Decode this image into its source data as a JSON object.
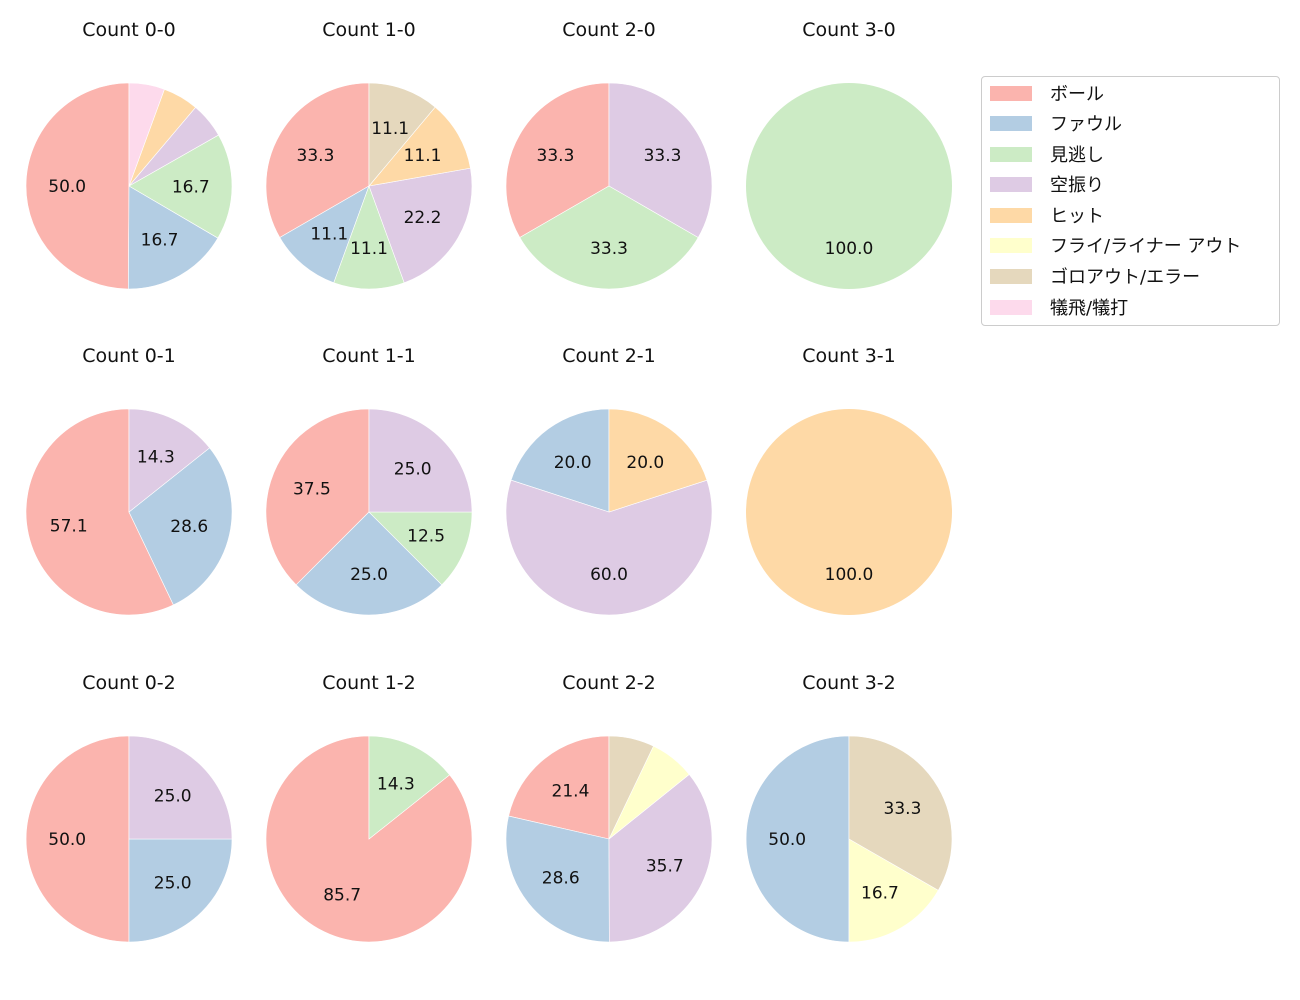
{
  "chart_data": {
    "type": "pie",
    "layout": {
      "rows": 3,
      "cols": 4,
      "start_angle": 90,
      "direction": "counterclockwise",
      "label_format": "%.1f"
    },
    "categories": [
      "ボール",
      "ファウル",
      "見逃し",
      "空振り",
      "ヒット",
      "フライ/ライナー アウト",
      "ゴロアウト/エラー",
      "犠飛/犠打"
    ],
    "colors": [
      "#fbb4ae",
      "#b3cde3",
      "#ccebc5",
      "#decbe4",
      "#fed9a6",
      "#ffffcc",
      "#e5d8bd",
      "#fddaec"
    ],
    "charts": [
      {
        "title": "Count 0-0",
        "values": [
          50.0,
          16.7,
          16.7,
          5.6,
          5.6,
          0,
          0,
          5.6
        ],
        "labels_shown": [
          "50.0",
          "16.7",
          "16.7"
        ]
      },
      {
        "title": "Count 1-0",
        "values": [
          33.3,
          11.1,
          11.1,
          22.2,
          11.1,
          0,
          11.1,
          0
        ],
        "labels_shown": [
          "33.3",
          "11.1",
          "11.1",
          "22.2",
          "11.1",
          "11.1"
        ]
      },
      {
        "title": "Count 2-0",
        "values": [
          33.3,
          0,
          33.3,
          33.3,
          0,
          0,
          0,
          0
        ],
        "labels_shown": [
          "33.3",
          "33.3",
          "33.3"
        ]
      },
      {
        "title": "Count 3-0",
        "values": [
          0,
          0,
          100.0,
          0,
          0,
          0,
          0,
          0
        ],
        "labels_shown": [
          "100.0"
        ]
      },
      {
        "title": "Count 0-1",
        "values": [
          57.1,
          28.6,
          0,
          14.3,
          0,
          0,
          0,
          0
        ],
        "labels_shown": [
          "57.1",
          "28.6",
          "14.3"
        ]
      },
      {
        "title": "Count 1-1",
        "values": [
          37.5,
          25.0,
          12.5,
          25.0,
          0,
          0,
          0,
          0
        ],
        "labels_shown": [
          "37.5",
          "25.0",
          "12.5",
          "25.0"
        ]
      },
      {
        "title": "Count 2-1",
        "values": [
          0,
          20.0,
          0,
          60.0,
          20.0,
          0,
          0,
          0
        ],
        "labels_shown": [
          "20.0",
          "60.0",
          "20.0"
        ]
      },
      {
        "title": "Count 3-1",
        "values": [
          0,
          0,
          0,
          0,
          100.0,
          0,
          0,
          0
        ],
        "labels_shown": [
          "100.0"
        ]
      },
      {
        "title": "Count 0-2",
        "values": [
          50.0,
          25.0,
          0,
          25.0,
          0,
          0,
          0,
          0
        ],
        "labels_shown": [
          "50.0",
          "25.0",
          "25.0"
        ]
      },
      {
        "title": "Count 1-2",
        "values": [
          85.7,
          0,
          14.3,
          0,
          0,
          0,
          0,
          0
        ],
        "labels_shown": [
          "85.7",
          "14.3"
        ]
      },
      {
        "title": "Count 2-2",
        "values": [
          21.4,
          28.6,
          0,
          35.7,
          0,
          7.1,
          7.1,
          0
        ],
        "labels_shown": [
          "21.4",
          "28.6",
          "35.7"
        ]
      },
      {
        "title": "Count 3-2",
        "values": [
          0,
          50.0,
          0,
          0,
          0,
          16.7,
          33.3,
          0
        ],
        "labels_shown": [
          "50.0",
          "16.7",
          "33.3"
        ]
      }
    ],
    "legend": {
      "position": "upper right",
      "entries": [
        "ボール",
        "ファウル",
        "見逃し",
        "空振り",
        "ヒット",
        "フライ/ライナー アウト",
        "ゴロアウト/エラー",
        "犠飛/犠打"
      ]
    },
    "min_label_pct": 7.5
  }
}
